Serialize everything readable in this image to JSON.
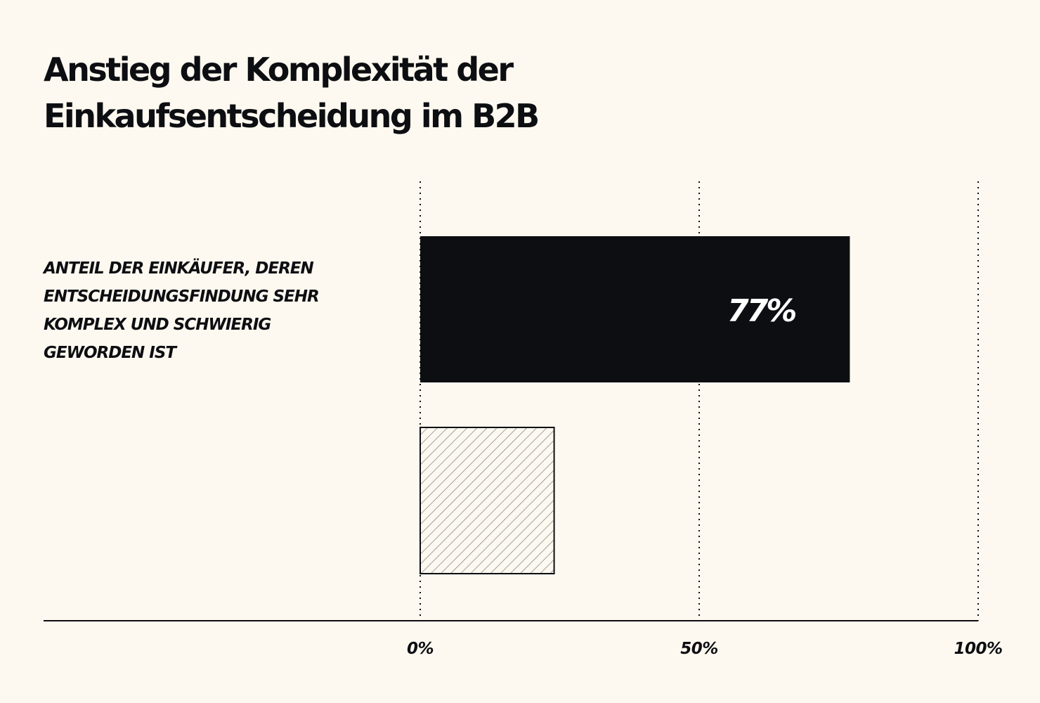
{
  "chart_data": {
    "type": "bar",
    "orientation": "horizontal",
    "title_lines": [
      "Anstieg der Komplexität der",
      "Einkaufsentscheidung im B2B"
    ],
    "categories": [
      [
        "ANTEIL DER EINKÄUFER, DEREN",
        "ENTSCHEIDUNGSFINDUNG SEHR",
        "KOMPLEX UND SCHWIERIG",
        "GEWORDEN IST"
      ],
      []
    ],
    "values": [
      77,
      24
    ],
    "value_labels": [
      "77%",
      ""
    ],
    "bar_styles": [
      "solid",
      "hatched"
    ],
    "xlim": [
      0,
      100
    ],
    "ticks": [
      0,
      50,
      100
    ],
    "tick_labels": [
      "0%",
      "50%",
      "100%"
    ],
    "grid": "dotted-vertical",
    "colors": {
      "background": "#fdf9f0",
      "bar": "#0d0e12",
      "hatch": "#8a8a8a",
      "text": "#0d0e12"
    }
  }
}
